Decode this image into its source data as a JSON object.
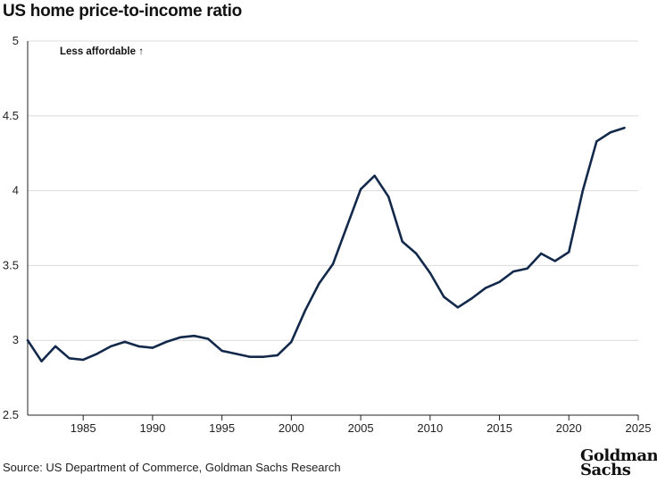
{
  "title": "US home price-to-income ratio",
  "source": "Source: US Department of Commerce, Goldman Sachs Research",
  "logo": {
    "line1": "Goldman",
    "line2": "Sachs"
  },
  "colors": {
    "line": "#13294b",
    "grid": "#dcdcdc",
    "axis": "#222222"
  },
  "chart_data": {
    "type": "line",
    "title": "US home price-to-income ratio",
    "annotation": "Less affordable ↑",
    "xlim": [
      1981,
      2025
    ],
    "ylim": [
      2.5,
      5
    ],
    "xticks": [
      1985,
      1990,
      1995,
      2000,
      2005,
      2010,
      2015,
      2020,
      2025
    ],
    "yticks": [
      2.5,
      3,
      3.5,
      4,
      4.5,
      5
    ],
    "ytick_labels": [
      "2.5",
      "3",
      "3.5",
      "4",
      "4.5",
      "5"
    ],
    "grid": "horizontal",
    "series": [
      {
        "x": [
          1981,
          1982,
          1983,
          1984,
          1985,
          1986,
          1987,
          1988,
          1989,
          1990,
          1991,
          1992,
          1993,
          1994,
          1995,
          1996,
          1997,
          1998,
          1999,
          2000,
          2001,
          2002,
          2003,
          2004,
          2005,
          2006,
          2007,
          2008,
          2009,
          2010,
          2011,
          2012,
          2013,
          2014,
          2015,
          2016,
          2017,
          2018,
          2019,
          2020,
          2021,
          2022,
          2023,
          2024
        ],
        "y": [
          3.0,
          2.86,
          2.96,
          2.88,
          2.87,
          2.91,
          2.96,
          2.99,
          2.96,
          2.95,
          2.99,
          3.02,
          3.03,
          3.01,
          2.93,
          2.91,
          2.89,
          2.89,
          2.9,
          2.99,
          3.2,
          3.38,
          3.51,
          3.76,
          4.01,
          4.1,
          3.96,
          3.66,
          3.58,
          3.45,
          3.29,
          3.22,
          3.28,
          3.35,
          3.39,
          3.46,
          3.48,
          3.58,
          3.53,
          3.59,
          4.0,
          4.33,
          4.39,
          4.42
        ]
      }
    ]
  }
}
